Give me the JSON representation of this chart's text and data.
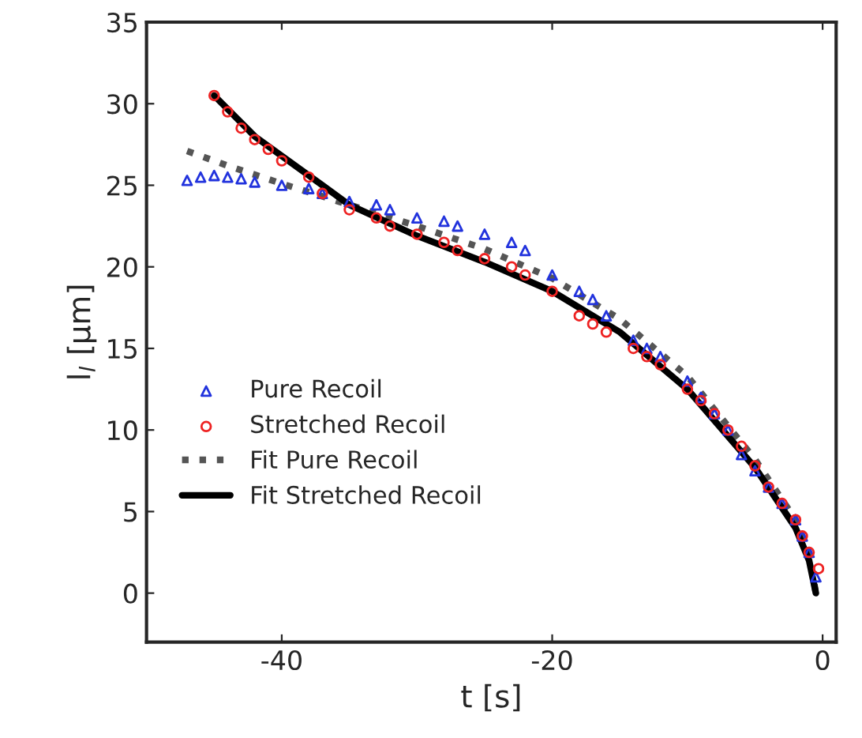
{
  "chart_data": {
    "type": "scatter",
    "xlabel": "t [s]",
    "ylabel": "l$_{l}$ [µm]",
    "xlim": [
      -50,
      1
    ],
    "ylim": [
      -3,
      35
    ],
    "xticks": [
      -40,
      -20,
      0
    ],
    "yticks": [
      0,
      5,
      10,
      15,
      20,
      25,
      30,
      35
    ],
    "grid": false,
    "legend": "lower left",
    "series": [
      {
        "name": "Pure Recoil",
        "marker": "triangle",
        "color": "#2233dd",
        "x": [
          -47,
          -46,
          -45,
          -44,
          -43,
          -42,
          -40,
          -38,
          -37,
          -35,
          -33,
          -32,
          -30,
          -28,
          -27,
          -25,
          -23,
          -22,
          -20,
          -18,
          -17,
          -16,
          -14,
          -13,
          -12,
          -10,
          -9,
          -8,
          -7,
          -6,
          -5,
          -4,
          -3,
          -2,
          -1.5,
          -1,
          -0.5
        ],
        "values": [
          25.3,
          25.5,
          25.6,
          25.5,
          25.4,
          25.2,
          25,
          24.8,
          24.5,
          24,
          23.8,
          23.5,
          23,
          22.8,
          22.5,
          22,
          21.5,
          21,
          19.5,
          18.5,
          18,
          17,
          15.5,
          15,
          14.5,
          13,
          12,
          11,
          10,
          8.5,
          7.5,
          6.5,
          5.5,
          4.5,
          3.5,
          2.5,
          1
        ]
      },
      {
        "name": "Stretched Recoil",
        "marker": "circle",
        "color": "#ee2222",
        "x": [
          -45,
          -44,
          -43,
          -42,
          -41,
          -40,
          -38,
          -37,
          -35,
          -33,
          -32,
          -30,
          -28,
          -27,
          -25,
          -23,
          -22,
          -20,
          -18,
          -17,
          -16,
          -14,
          -13,
          -12,
          -10,
          -9,
          -8,
          -7,
          -6,
          -5,
          -4,
          -3,
          -2,
          -1.5,
          -1,
          -0.3
        ],
        "values": [
          30.5,
          29.5,
          28.5,
          27.8,
          27.2,
          26.5,
          25.5,
          24.5,
          23.5,
          23,
          22.5,
          22,
          21.5,
          21,
          20.5,
          20,
          19.5,
          18.5,
          17,
          16.5,
          16,
          15,
          14.5,
          14,
          12.5,
          11.8,
          11,
          10,
          9,
          7.8,
          6.5,
          5.5,
          4.5,
          3.5,
          2.5,
          1.5
        ]
      },
      {
        "name": "Fit Pure Recoil",
        "type": "line",
        "line_style": "dotted",
        "color": "#555555",
        "x": [
          -47,
          -44,
          -40,
          -35,
          -30,
          -25,
          -20,
          -15,
          -10,
          -5,
          -2,
          -1,
          -0.5
        ],
        "values": [
          27.1,
          26.2,
          25.1,
          23.8,
          22.5,
          21.1,
          19.3,
          16.8,
          13.3,
          8.2,
          4.5,
          2.5,
          0
        ]
      },
      {
        "name": "Fit Stretched Recoil",
        "type": "line",
        "line_style": "solid",
        "color": "#000000",
        "x": [
          -45,
          -42,
          -40,
          -37,
          -35,
          -30,
          -25,
          -20,
          -15,
          -10,
          -5,
          -2,
          -1,
          -0.5
        ],
        "values": [
          30.5,
          28,
          26.8,
          25,
          23.8,
          21.9,
          20.3,
          18.5,
          16,
          12.5,
          7.7,
          4,
          2,
          0
        ]
      }
    ]
  }
}
